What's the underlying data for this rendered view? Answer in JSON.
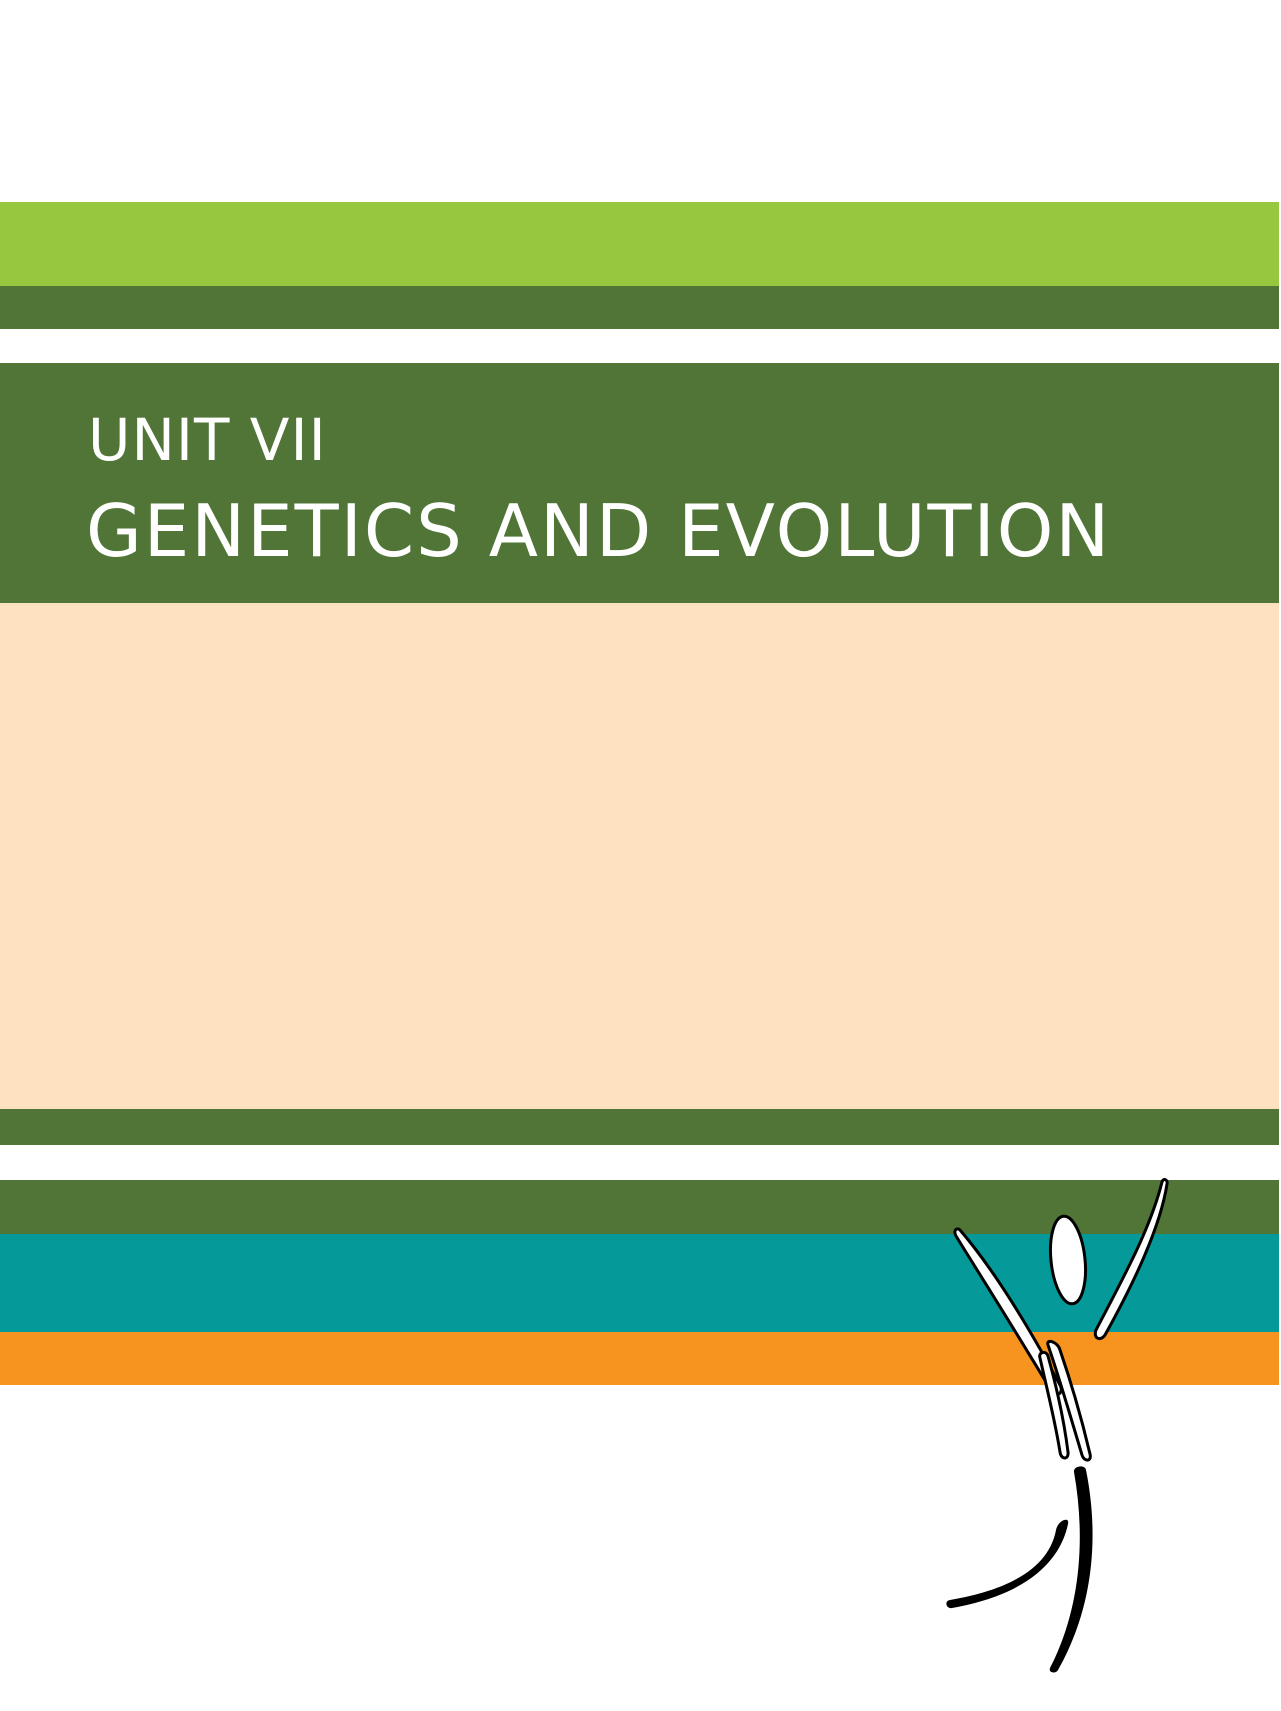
{
  "unit": {
    "label": "UNIT VII",
    "title": "GENETICS AND EVOLUTION"
  },
  "colors": {
    "lime": "#97c73f",
    "dark_green": "#507536",
    "peach": "#fde1c1",
    "teal": "#06999a",
    "orange": "#f6941f",
    "figure_stroke": "#000000"
  },
  "icons": {
    "figure": "dancing-figure-icon"
  }
}
